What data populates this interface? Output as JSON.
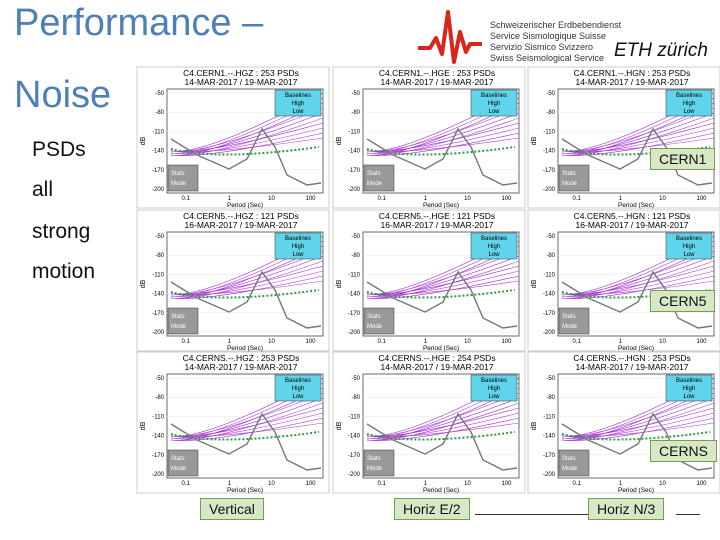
{
  "header": {
    "title_line1": "Performance –",
    "title_line2": "Noise",
    "logo_lines": [
      "Schweizerischer Erdbebendienst",
      "Service Sismologique Suisse",
      "Servizio Sismico Svizzero",
      "Swiss Seismological Service"
    ],
    "eth_logo": "ETH zürich"
  },
  "side_text": [
    "PSDs",
    "all",
    "strong",
    "motion"
  ],
  "panel_common": {
    "y_ticks": [
      "-50",
      "-80",
      "-110",
      "-140",
      "-170",
      "-200"
    ],
    "x_ticks": [
      "0.1",
      "1",
      "10",
      "100"
    ],
    "x_label": "Period (Sec)",
    "y_label": "dB",
    "legend": [
      "Baselines",
      "High",
      "Low"
    ],
    "stats": [
      "Stats",
      "Mode"
    ]
  },
  "panels": [
    [
      {
        "title": "C4.CERN1.--.HGZ : 253 PSDs",
        "dates": "14-MAR-2017 / 19-MAR-2017"
      },
      {
        "title": "C4.CERN1.--.HGE : 253 PSDs",
        "dates": "14-MAR-2017 / 19-MAR-2017"
      },
      {
        "title": "C4.CERN1.--.HGN : 253 PSDs",
        "dates": "14-MAR-2017 / 19-MAR-2017"
      }
    ],
    [
      {
        "title": "C4.CERN5.--.HGZ : 121 PSDs",
        "dates": "16-MAR-2017 / 19-MAR-2017"
      },
      {
        "title": "C4.CERN5.--.HGE : 121 PSDs",
        "dates": "16-MAR-2017 / 19-MAR-2017"
      },
      {
        "title": "C4.CERN5.--.HGN : 121 PSDs",
        "dates": "16-MAR-2017 / 19-MAR-2017"
      }
    ],
    [
      {
        "title": "C4.CERNS.--.HGZ : 253 PSDs",
        "dates": "14-MAR-2017 / 19-MAR-2017"
      },
      {
        "title": "C4.CERNS.--.HGE : 254 PSDs",
        "dates": "14-MAR-2017 / 19-MAR-2017"
      },
      {
        "title": "C4.CERNS.--.HGN : 253 PSDs",
        "dates": "14-MAR-2017 / 19-MAR-2017"
      }
    ]
  ],
  "row_labels": [
    "CERN1",
    "CERN5",
    "CERNS"
  ],
  "column_labels": [
    "Vertical",
    "Horiz E/2",
    "Horiz N/3"
  ]
}
